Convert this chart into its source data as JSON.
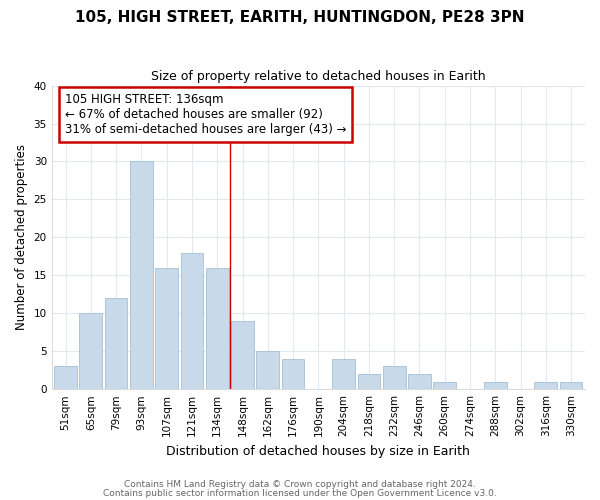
{
  "title": "105, HIGH STREET, EARITH, HUNTINGDON, PE28 3PN",
  "subtitle": "Size of property relative to detached houses in Earith",
  "xlabel": "Distribution of detached houses by size in Earith",
  "ylabel": "Number of detached properties",
  "bin_labels": [
    "51sqm",
    "65sqm",
    "79sqm",
    "93sqm",
    "107sqm",
    "121sqm",
    "134sqm",
    "148sqm",
    "162sqm",
    "176sqm",
    "190sqm",
    "204sqm",
    "218sqm",
    "232sqm",
    "246sqm",
    "260sqm",
    "274sqm",
    "288sqm",
    "302sqm",
    "316sqm",
    "330sqm"
  ],
  "bar_heights": [
    3,
    10,
    12,
    30,
    16,
    18,
    16,
    9,
    5,
    4,
    0,
    4,
    2,
    3,
    2,
    1,
    0,
    1,
    0,
    1,
    1
  ],
  "bar_color": "#c8daea",
  "bar_edgecolor": "#9ab8d0",
  "property_line_x": 6.5,
  "property_line_color": "#cc0000",
  "ylim": [
    0,
    40
  ],
  "yticks": [
    0,
    5,
    10,
    15,
    20,
    25,
    30,
    35,
    40
  ],
  "annotation_title": "105 HIGH STREET: 136sqm",
  "annotation_line1": "← 67% of detached houses are smaller (92)",
  "annotation_line2": "31% of semi-detached houses are larger (43) →",
  "annotation_box_facecolor": "#ffffff",
  "annotation_box_edgecolor": "#cc0000",
  "footer_line1": "Contains HM Land Registry data © Crown copyright and database right 2024.",
  "footer_line2": "Contains public sector information licensed under the Open Government Licence v3.0.",
  "plot_bg_color": "#ffffff",
  "fig_bg_color": "#ffffff",
  "grid_color": "#e0e8f0",
  "title_fontsize": 11,
  "subtitle_fontsize": 9,
  "ylabel_fontsize": 8.5,
  "xlabel_fontsize": 9,
  "tick_fontsize": 7.5,
  "annotation_fontsize": 8.5
}
